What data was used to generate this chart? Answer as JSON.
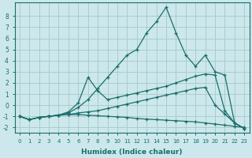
{
  "xlabel": "Humidex (Indice chaleur)",
  "bg_color": "#cce8ec",
  "grid_color": "#aacccc",
  "line_color": "#1a6e6a",
  "xlim_min": -0.5,
  "xlim_max": 23.5,
  "ylim_min": -2.5,
  "ylim_max": 9.2,
  "yticks": [
    -2,
    -1,
    0,
    1,
    2,
    3,
    4,
    5,
    6,
    7,
    8
  ],
  "xticks": [
    0,
    1,
    2,
    3,
    4,
    5,
    6,
    7,
    8,
    9,
    10,
    11,
    12,
    13,
    14,
    15,
    16,
    17,
    18,
    19,
    20,
    21,
    22,
    23
  ],
  "series": [
    {
      "x": [
        0,
        1,
        2,
        3,
        4,
        5,
        6,
        7,
        8,
        9,
        10,
        11,
        12,
        13,
        14,
        15,
        16,
        17,
        18,
        19,
        20,
        21,
        22,
        23
      ],
      "y": [
        -1.0,
        -1.3,
        -1.1,
        -1.0,
        -0.9,
        -0.85,
        -0.85,
        -0.9,
        -0.95,
        -1.0,
        -1.05,
        -1.1,
        -1.2,
        -1.25,
        -1.3,
        -1.35,
        -1.4,
        -1.45,
        -1.5,
        -1.6,
        -1.7,
        -1.8,
        -1.9,
        -2.0
      ]
    },
    {
      "x": [
        0,
        1,
        2,
        3,
        4,
        5,
        6,
        7,
        8,
        9,
        10,
        11,
        12,
        13,
        14,
        15,
        16,
        17,
        18,
        19,
        20,
        21,
        22,
        23
      ],
      "y": [
        -1.0,
        -1.3,
        -1.1,
        -1.0,
        -0.9,
        -0.85,
        -0.7,
        -0.6,
        -0.5,
        -0.3,
        -0.1,
        0.1,
        0.3,
        0.5,
        0.7,
        0.9,
        1.1,
        1.3,
        1.5,
        1.6,
        0.0,
        -0.8,
        -1.6,
        -2.1
      ]
    },
    {
      "x": [
        0,
        1,
        2,
        3,
        4,
        5,
        6,
        7,
        8,
        9,
        10,
        11,
        12,
        13,
        14,
        15,
        16,
        17,
        18,
        19,
        20,
        21,
        22,
        23
      ],
      "y": [
        -1.0,
        -1.3,
        -1.1,
        -1.0,
        -0.9,
        -0.6,
        0.2,
        2.5,
        1.3,
        0.5,
        0.7,
        0.9,
        1.1,
        1.3,
        1.5,
        1.7,
        2.0,
        2.3,
        2.6,
        2.8,
        2.7,
        -0.5,
        -1.6,
        -2.1
      ]
    },
    {
      "x": [
        0,
        1,
        2,
        3,
        4,
        5,
        6,
        7,
        8,
        9,
        10,
        11,
        12,
        13,
        14,
        15,
        16,
        17,
        18,
        19,
        20,
        21,
        22,
        23
      ],
      "y": [
        -1.0,
        -1.3,
        -1.1,
        -1.0,
        -0.9,
        -0.7,
        -0.2,
        0.5,
        1.5,
        2.5,
        3.5,
        4.5,
        5.0,
        6.5,
        7.5,
        8.8,
        6.5,
        4.5,
        3.5,
        4.5,
        3.0,
        2.7,
        -1.6,
        -2.1
      ]
    }
  ]
}
